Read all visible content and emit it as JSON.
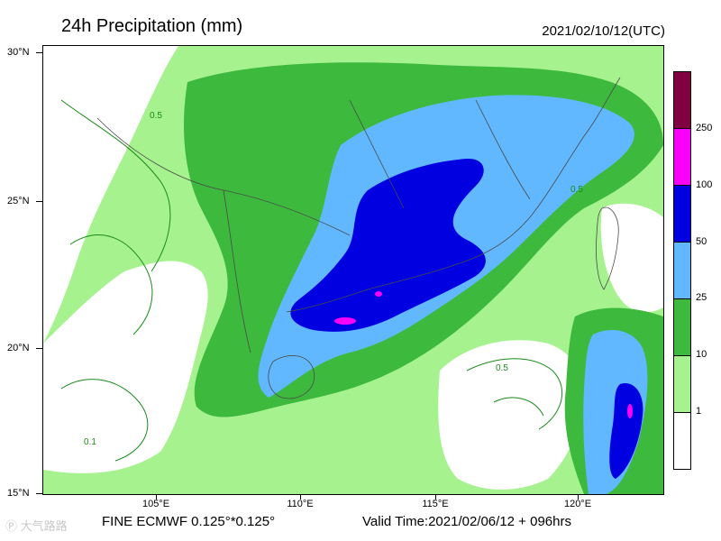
{
  "title": "24h Precipitation (mm)",
  "datetime": "2021/02/10/12(UTC)",
  "footer": {
    "model": "FINE ECMWF 0.125°*0.125°",
    "valid": "Valid Time:2021/02/06/12 + 096hrs"
  },
  "watermark": "Ⓟ 大气路路",
  "axes": {
    "lon_labels": [
      "105°E",
      "110°E",
      "115°E",
      "120°E"
    ],
    "lat_labels": [
      "30°N",
      "25°N",
      "20°N",
      "15°N"
    ]
  },
  "colorbar": {
    "labels": [
      "1",
      "10",
      "25",
      "50",
      "100",
      "250"
    ],
    "colors": [
      "#ffffff",
      "#a6f28f",
      "#3dba3d",
      "#61b8ff",
      "#0000e1",
      "#fa00fa",
      "#800040"
    ]
  },
  "contour_labels": [
    "0.5",
    "0.1"
  ],
  "map_colors": {
    "light_green": "#a6f28f",
    "green": "#3dba3d",
    "light_blue": "#61b8ff",
    "blue": "#0000e1",
    "magenta": "#fa00fa",
    "contour_line": "#1a8a1a"
  }
}
